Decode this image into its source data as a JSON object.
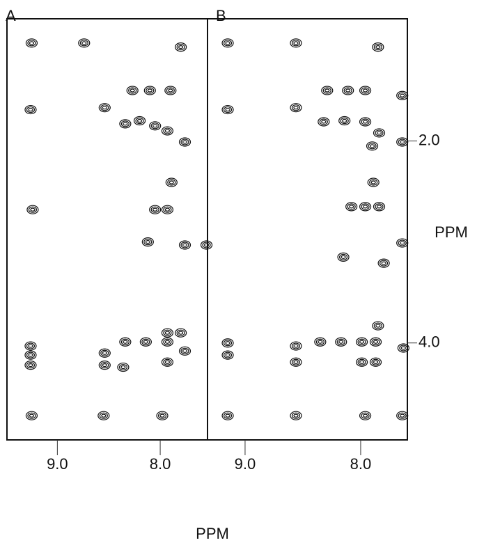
{
  "chart_data": [
    {
      "type": "scatter",
      "title": "A",
      "x": [
        9.25,
        8.74,
        7.8,
        9.26,
        8.54,
        8.27,
        8.1,
        7.9,
        8.34,
        8.2,
        8.05,
        7.93,
        7.76,
        7.89,
        7.93,
        8.05,
        9.24,
        8.12,
        7.76,
        7.55,
        9.26,
        9.26,
        9.26,
        8.34,
        8.14,
        7.93,
        7.8,
        7.93,
        7.76,
        8.54,
        8.54,
        8.36,
        7.93,
        9.25,
        8.55,
        7.98
      ],
      "y": [
        1.03,
        1.03,
        1.07,
        1.69,
        1.67,
        1.5,
        1.5,
        1.5,
        1.83,
        1.8,
        1.85,
        1.9,
        2.01,
        2.41,
        2.68,
        2.68,
        2.68,
        3.0,
        3.03,
        3.03,
        4.03,
        4.12,
        4.22,
        3.99,
        3.99,
        3.99,
        3.9,
        3.9,
        4.08,
        4.1,
        4.22,
        4.24,
        4.19,
        4.72,
        4.72,
        4.72
      ],
      "xlim": [
        9.49,
        7.54
      ],
      "xticks": [
        {
          "value": 9,
          "label": "9.0"
        },
        {
          "value": 8,
          "label": "8.0"
        }
      ],
      "ylim": [
        0.79,
        4.96
      ],
      "color": "#111111"
    },
    {
      "type": "scatter",
      "title": "B",
      "x": [
        9.15,
        8.56,
        7.85,
        7.64,
        9.15,
        8.56,
        8.29,
        8.11,
        7.96,
        8.32,
        8.14,
        7.96,
        7.84,
        7.64,
        7.9,
        7.89,
        8.08,
        7.96,
        7.84,
        8.15,
        7.8,
        7.64,
        7.85,
        9.15,
        9.15,
        8.56,
        8.56,
        8.35,
        8.17,
        7.99,
        7.87,
        7.99,
        7.87,
        7.63,
        9.15,
        8.56,
        7.96,
        7.64
      ],
      "y": [
        1.03,
        1.03,
        1.07,
        1.55,
        1.69,
        1.67,
        1.5,
        1.5,
        1.5,
        1.81,
        1.8,
        1.81,
        1.92,
        2.01,
        2.05,
        2.41,
        2.65,
        2.65,
        2.65,
        3.15,
        3.21,
        3.01,
        3.83,
        4.0,
        4.12,
        4.03,
        4.19,
        3.99,
        3.99,
        3.99,
        3.99,
        4.19,
        4.19,
        4.05,
        4.72,
        4.72,
        4.72,
        4.72
      ],
      "xlim": [
        9.325,
        7.596
      ],
      "xticks": [
        {
          "value": 9,
          "label": "9.0"
        },
        {
          "value": 8,
          "label": "8.0"
        }
      ],
      "ylim": [
        0.79,
        4.96
      ],
      "yticks": [
        {
          "value": 2,
          "label": "2.0"
        },
        {
          "value": 4,
          "label": "4.0"
        }
      ],
      "ylabel": "PPM",
      "color": "#111111"
    }
  ],
  "xlabel": "PPM"
}
